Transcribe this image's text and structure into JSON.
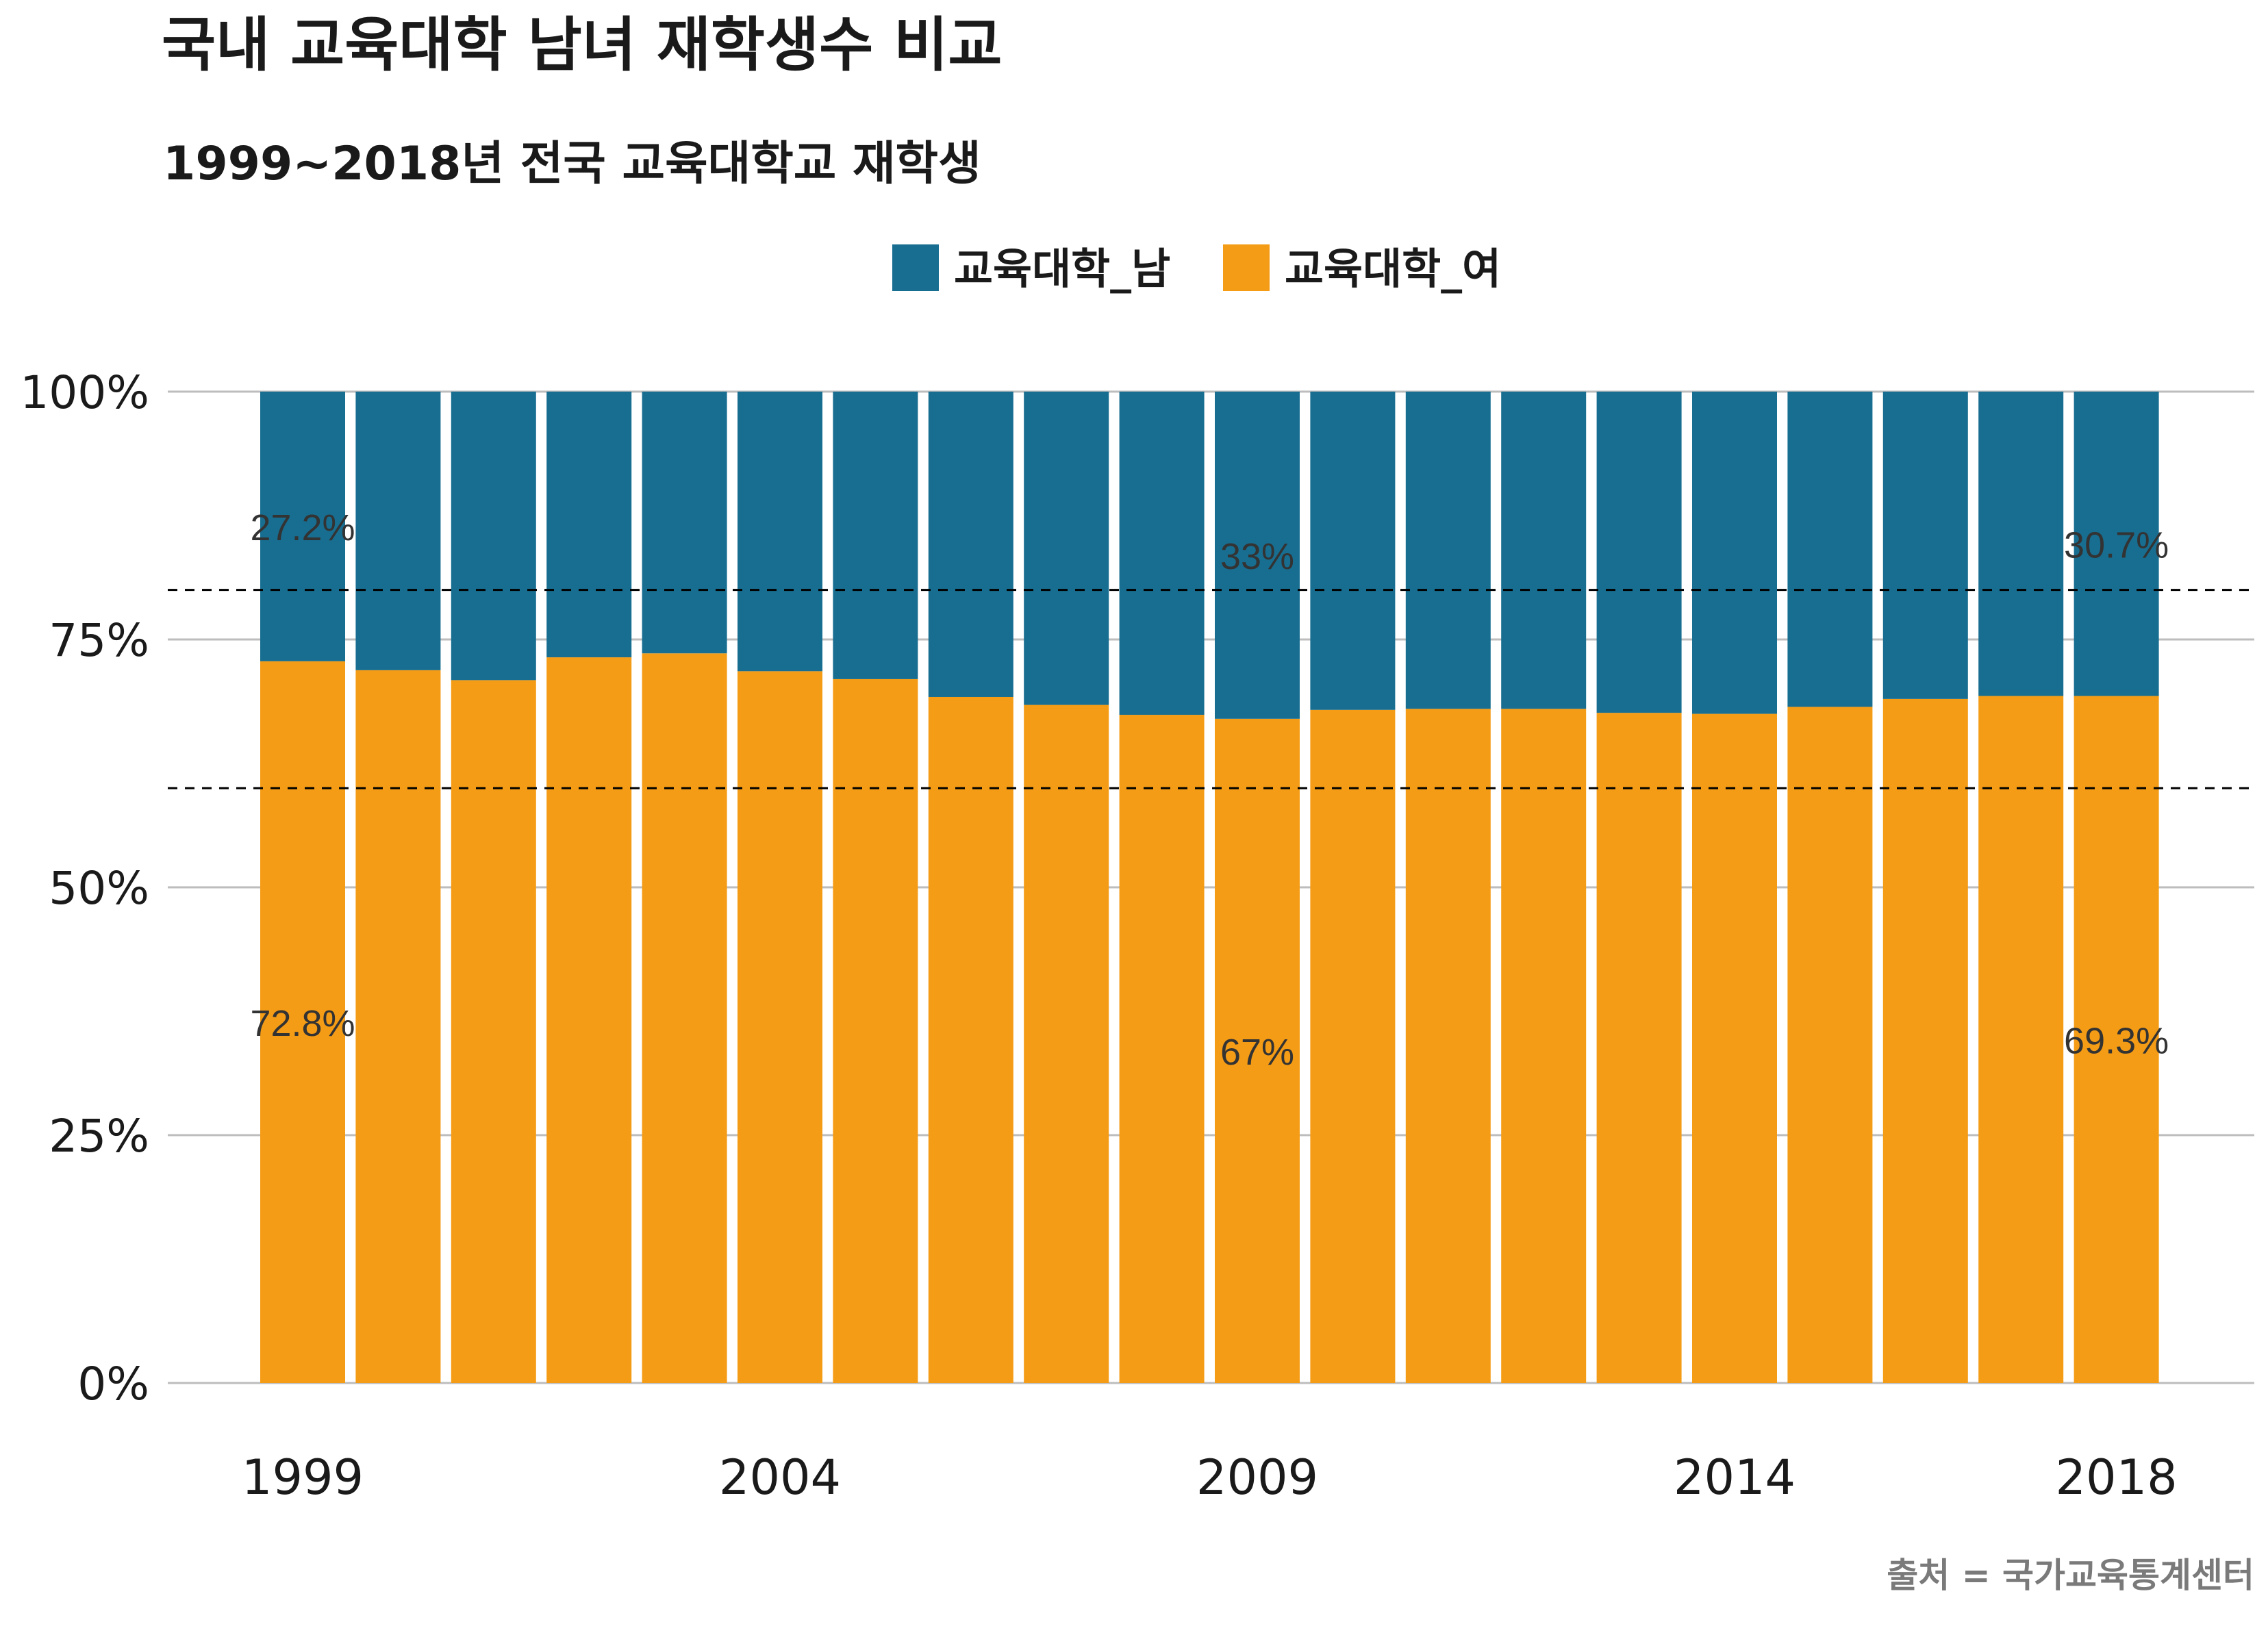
{
  "chart_data": {
    "type": "bar",
    "stacked": true,
    "title": "국내 교육대학 남녀 재학생수 비교",
    "subtitle": "1999~2018년 전국 교육대학교 재학생",
    "caption": "출처 = 국가교육통계센터",
    "legend_position": "top-center",
    "grid": true,
    "ylim": [
      0,
      1
    ],
    "y_ticks": [
      "0%",
      "25%",
      "50%",
      "75%",
      "100%"
    ],
    "x_tick_labels": [
      "1999",
      "2004",
      "2009",
      "2014",
      "2018"
    ],
    "categories": [
      "1999",
      "2000",
      "2001",
      "2002",
      "2003",
      "2004",
      "2005",
      "2006",
      "2007",
      "2008",
      "2009",
      "2010",
      "2011",
      "2012",
      "2013",
      "2014",
      "2015",
      "2016",
      "2017",
      "2018"
    ],
    "series": [
      {
        "name": "교육대학_남",
        "color": "#186e91",
        "values": [
          0.272,
          0.281,
          0.291,
          0.268,
          0.264,
          0.282,
          0.29,
          0.308,
          0.316,
          0.326,
          0.33,
          0.321,
          0.32,
          0.32,
          0.324,
          0.325,
          0.318,
          0.31,
          0.307,
          0.307
        ]
      },
      {
        "name": "교육대학_여",
        "color": "#f59c16",
        "values": [
          0.728,
          0.719,
          0.709,
          0.732,
          0.736,
          0.718,
          0.71,
          0.692,
          0.684,
          0.674,
          0.67,
          0.679,
          0.68,
          0.68,
          0.676,
          0.675,
          0.682,
          0.69,
          0.693,
          0.693
        ]
      }
    ],
    "data_labels": [
      {
        "category": "1999",
        "series": "교육대학_남",
        "text": "27.2%"
      },
      {
        "category": "1999",
        "series": "교육대학_여",
        "text": "72.8%"
      },
      {
        "category": "2009",
        "series": "교육대학_남",
        "text": "33%"
      },
      {
        "category": "2009",
        "series": "교육대학_여",
        "text": "67%"
      },
      {
        "category": "2018",
        "series": "교육대학_남",
        "text": "30.7%"
      },
      {
        "category": "2018",
        "series": "교육대학_여",
        "text": "69.3%"
      }
    ],
    "reference_lines": [
      0.8,
      0.6
    ]
  }
}
